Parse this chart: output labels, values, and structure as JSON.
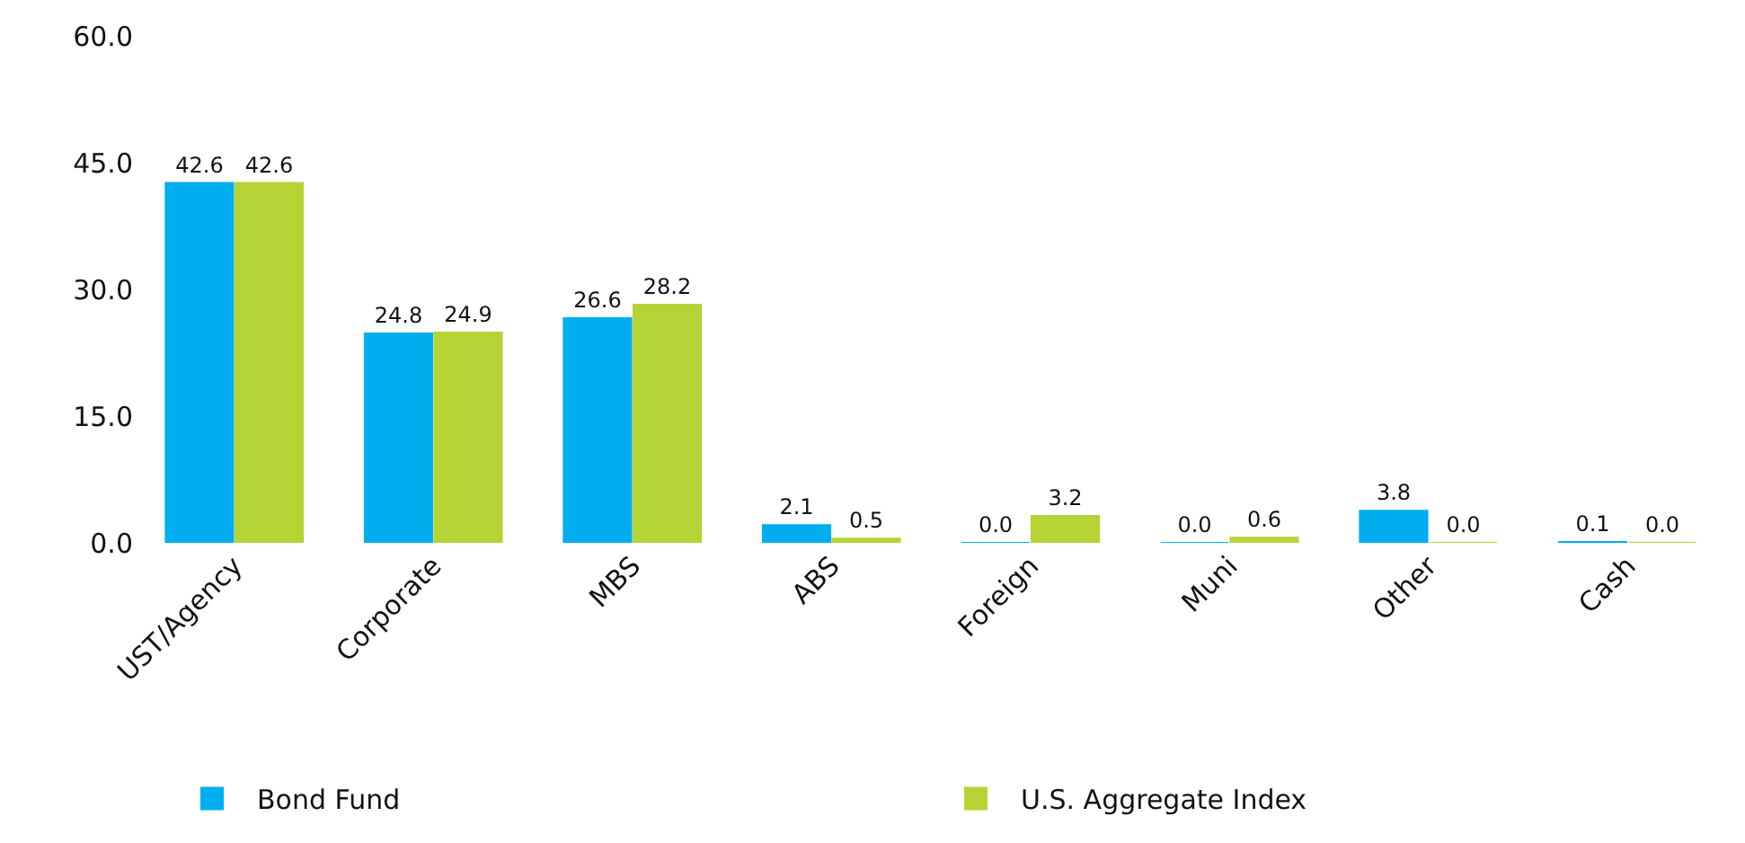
{
  "chart_data": {
    "type": "bar",
    "categories": [
      "UST/Agency",
      "Corporate",
      "MBS",
      "ABS",
      "Foreign",
      "Muni",
      "Other",
      "Cash"
    ],
    "series": [
      {
        "name": "Bond Fund",
        "color": "#00aeef",
        "values": [
          42.6,
          24.8,
          26.6,
          2.1,
          0.0,
          0.0,
          3.8,
          0.1
        ],
        "value_labels": [
          "42.6",
          "24.8",
          "26.6",
          "2.1",
          "0.0",
          "0.0",
          "3.8",
          "0.1"
        ]
      },
      {
        "name": "U.S. Aggregate Index",
        "color": "#b5d334",
        "values": [
          42.6,
          24.9,
          28.2,
          0.5,
          3.2,
          0.6,
          0.0,
          0.0
        ],
        "value_labels": [
          "42.6",
          "24.9",
          "28.2",
          "0.5",
          "3.2",
          "0.6",
          "0.0",
          "0.0"
        ]
      }
    ],
    "ylim": [
      0,
      60
    ],
    "yticks": [
      {
        "value": 0,
        "label": "0.0"
      },
      {
        "value": 15,
        "label": "15.0"
      },
      {
        "value": 30,
        "label": "30.0"
      },
      {
        "value": 45,
        "label": "45.0"
      },
      {
        "value": 60,
        "label": "60.0"
      }
    ],
    "grid": false,
    "legend": "bottom"
  }
}
